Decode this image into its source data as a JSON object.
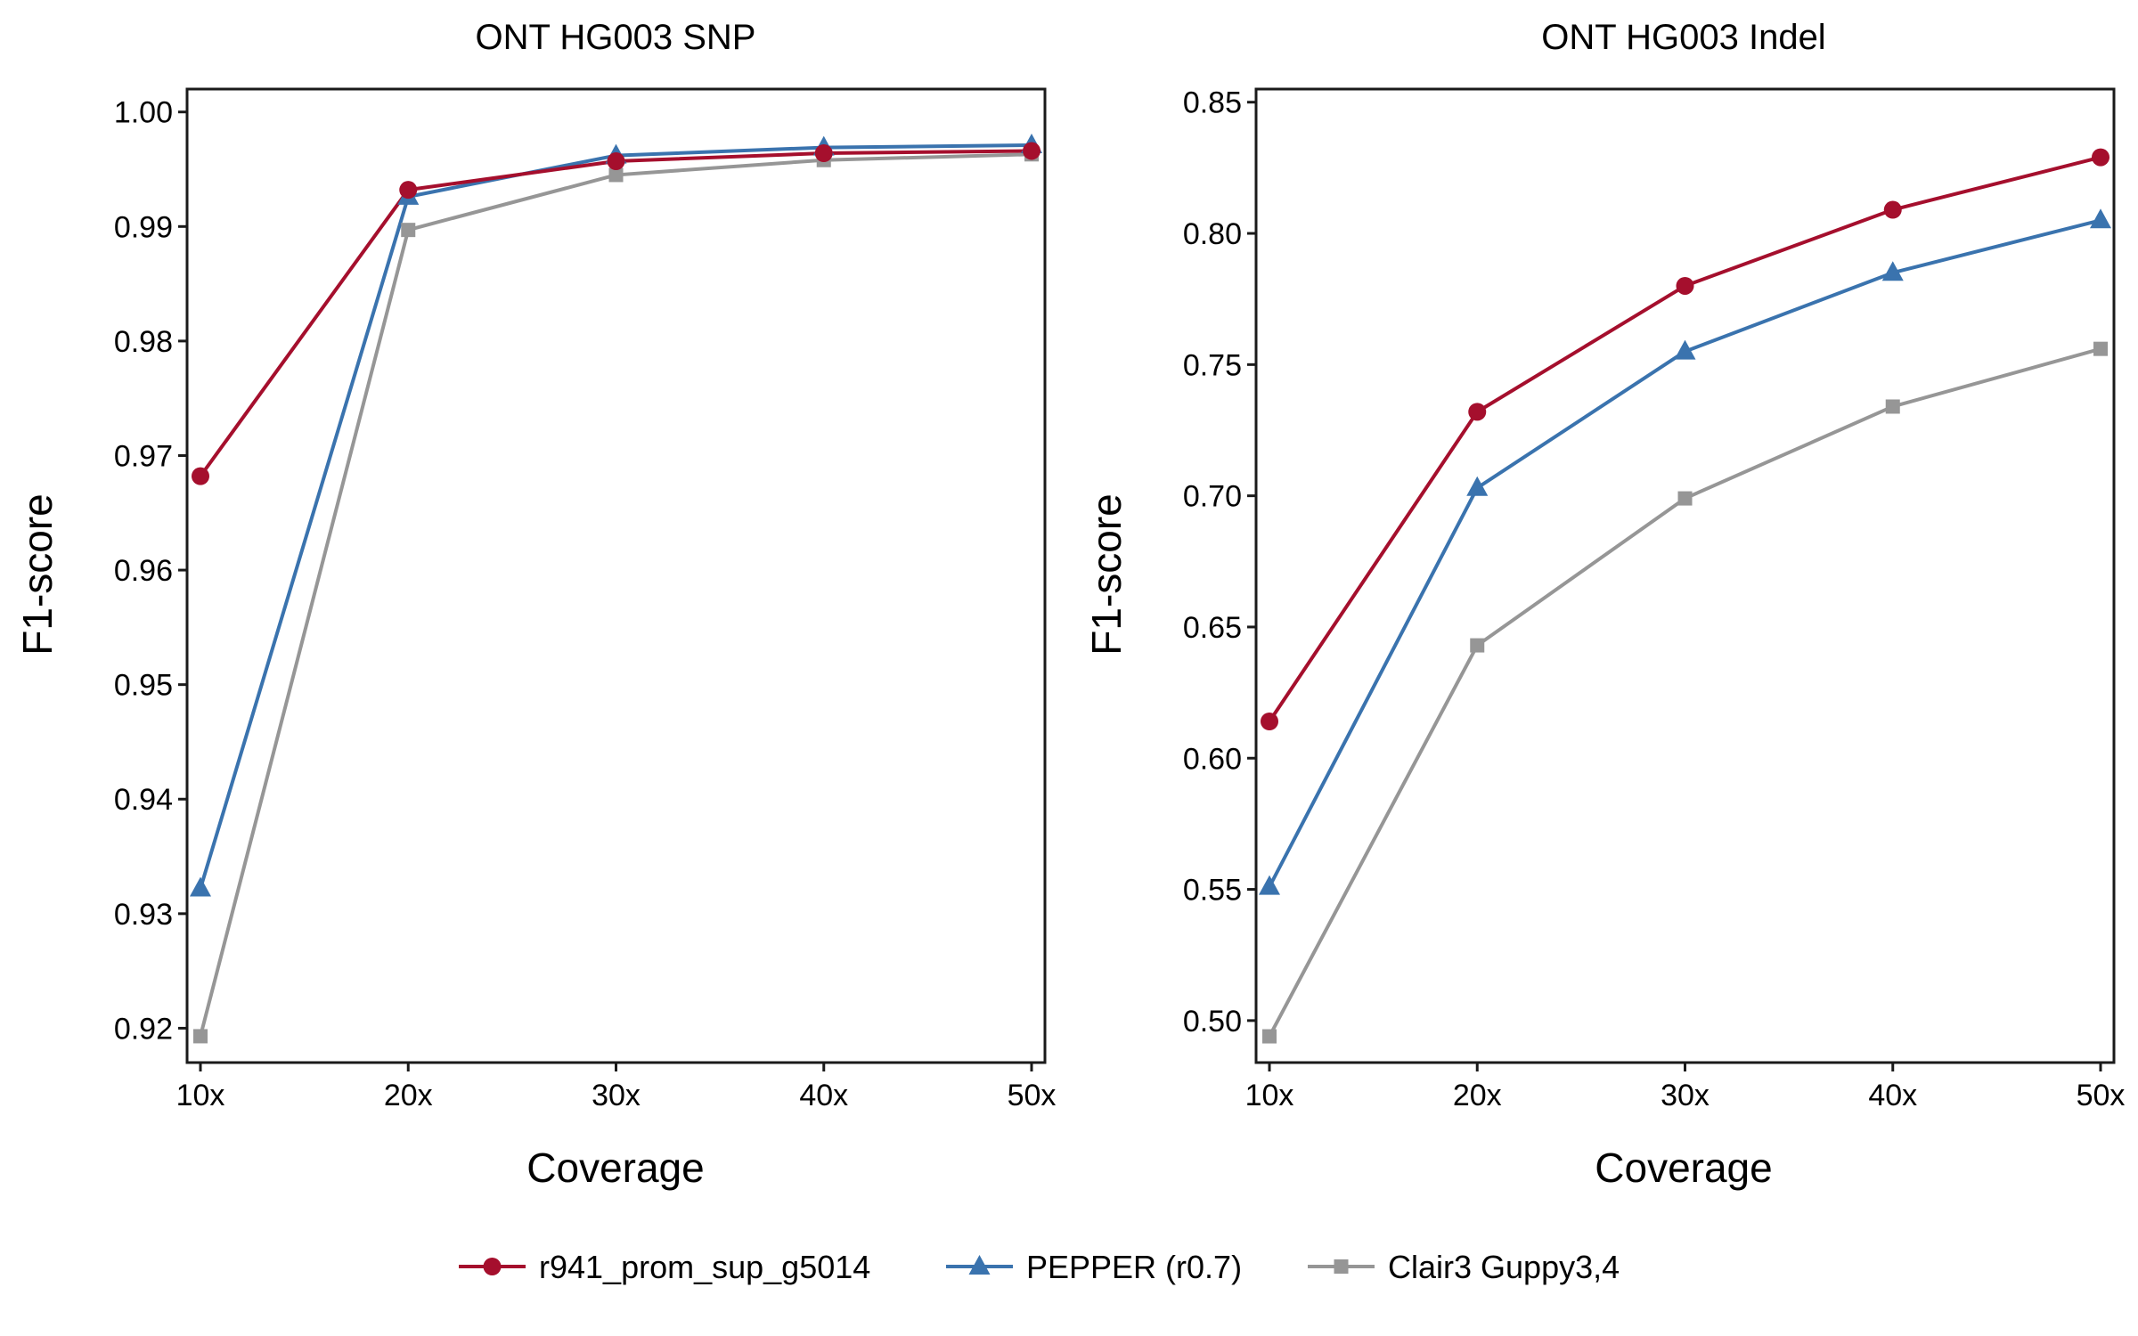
{
  "legend": [
    {
      "name": "r941_prom_sup_g5014",
      "color": "#a50f2d",
      "marker": "circle"
    },
    {
      "name": "PEPPER (r0.7)",
      "color": "#3a73ae",
      "marker": "triangle"
    },
    {
      "name": "Clair3 Guppy3,4",
      "color": "#969696",
      "marker": "square"
    }
  ],
  "chart_data": [
    {
      "type": "line",
      "title": "ONT HG003 SNP",
      "xlabel": "Coverage",
      "ylabel": "F1-score",
      "categories": [
        "10x",
        "20x",
        "30x",
        "40x",
        "50x"
      ],
      "ylim": [
        0.917,
        1.002
      ],
      "yticks": [
        0.92,
        0.93,
        0.94,
        0.95,
        0.96,
        0.97,
        0.98,
        0.99,
        1.0
      ],
      "ytick_labels": [
        "0.92",
        "0.93",
        "0.94",
        "0.95",
        "0.96",
        "0.97",
        "0.98",
        "0.99",
        "1.00"
      ],
      "grid": false,
      "legend_position": "bottom",
      "series": [
        {
          "name": "r941_prom_sup_g5014",
          "values": [
            0.9682,
            0.9932,
            0.9957,
            0.9964,
            0.9966
          ]
        },
        {
          "name": "PEPPER (r0.7)",
          "values": [
            0.9322,
            0.9926,
            0.9962,
            0.9969,
            0.9971
          ]
        },
        {
          "name": "Clair3 Guppy3,4",
          "values": [
            0.9193,
            0.9897,
            0.9945,
            0.9958,
            0.9963
          ]
        }
      ]
    },
    {
      "type": "line",
      "title": "ONT HG003 Indel",
      "xlabel": "Coverage",
      "ylabel": "F1-score",
      "categories": [
        "10x",
        "20x",
        "30x",
        "40x",
        "50x"
      ],
      "ylim": [
        0.484,
        0.855
      ],
      "yticks": [
        0.5,
        0.55,
        0.6,
        0.65,
        0.7,
        0.75,
        0.8,
        0.85
      ],
      "ytick_labels": [
        "0.50",
        "0.55",
        "0.60",
        "0.65",
        "0.70",
        "0.75",
        "0.80",
        "0.85"
      ],
      "grid": false,
      "legend_position": "bottom",
      "series": [
        {
          "name": "r941_prom_sup_g5014",
          "values": [
            0.614,
            0.732,
            0.78,
            0.809,
            0.829
          ]
        },
        {
          "name": "PEPPER (r0.7)",
          "values": [
            0.551,
            0.703,
            0.755,
            0.785,
            0.805
          ]
        },
        {
          "name": "Clair3 Guppy3,4",
          "values": [
            0.494,
            0.643,
            0.699,
            0.734,
            0.756
          ]
        }
      ]
    }
  ]
}
